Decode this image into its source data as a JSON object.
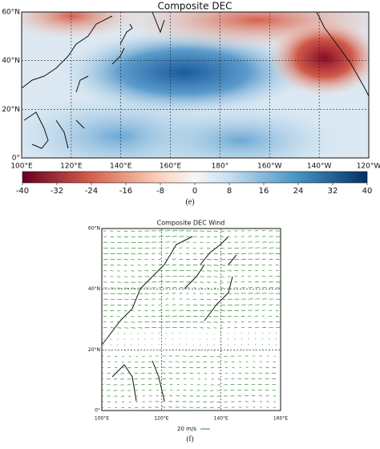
{
  "panels": [
    {
      "title": "Composite DEC",
      "x_labels": [
        "100°E",
        "120°E",
        "140°E",
        "160°E",
        "180°",
        "160°W",
        "140°W",
        "120°W"
      ],
      "y_labels": [
        "60°N",
        "40°N",
        "20°N",
        "0°"
      ],
      "colorbar": {
        "lim": [
          -40,
          40
        ],
        "ticks": [
          -40,
          -32,
          -24,
          -16,
          -8,
          0,
          8,
          16,
          24,
          32,
          40
        ]
      },
      "caption": "(e)"
    },
    {
      "title": "Composite DEC Wind",
      "x_labels": [
        "100°E",
        "120°E",
        "140°E",
        "160°E"
      ],
      "y_labels": [
        "60°N",
        "40°N",
        "20°N",
        "0°"
      ],
      "reference_vector": "20 m/s",
      "caption": "(f)"
    }
  ]
}
